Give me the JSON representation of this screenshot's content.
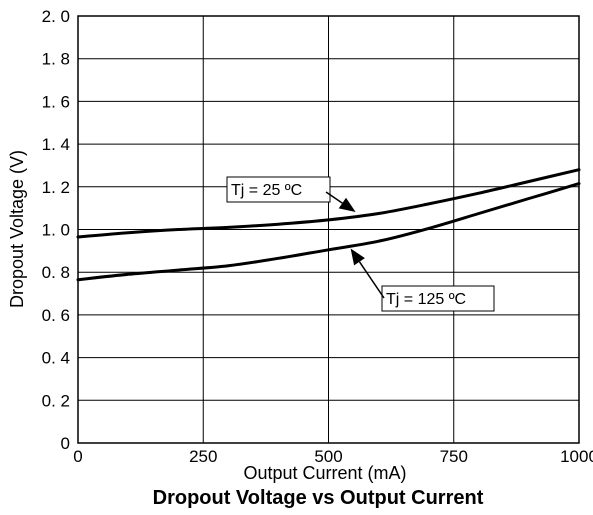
{
  "chart_data": {
    "type": "line",
    "title": "Dropout Voltage vs Output Current",
    "xlabel": "Output Current (mA)",
    "ylabel": "Dropout Voltage (V)",
    "xlim": [
      0,
      1000
    ],
    "ylim": [
      0,
      2.0
    ],
    "x_ticks": [
      0,
      250,
      500,
      750,
      1000
    ],
    "x_tick_labels": [
      "0",
      "250",
      "500",
      "750",
      "1000"
    ],
    "y_ticks": [
      0,
      0.2,
      0.4,
      0.6,
      0.8,
      1.0,
      1.2,
      1.4,
      1.6,
      1.8,
      2.0
    ],
    "y_tick_labels": [
      "0",
      "0. 2",
      "0. 4",
      "0. 6",
      "0. 8",
      "1. 0",
      "1. 2",
      "1. 4",
      "1. 6",
      "1. 8",
      "2. 0"
    ],
    "grid": true,
    "series": [
      {
        "name": "Tj = 25 ºC",
        "x": [
          0,
          100,
          200,
          300,
          400,
          500,
          600,
          700,
          800,
          900,
          1000
        ],
        "y": [
          0.965,
          0.985,
          1.0,
          1.01,
          1.025,
          1.045,
          1.075,
          1.12,
          1.17,
          1.225,
          1.28
        ]
      },
      {
        "name": "Tj = 125 ºC",
        "x": [
          0,
          100,
          200,
          300,
          400,
          500,
          600,
          700,
          800,
          900,
          1000
        ],
        "y": [
          0.765,
          0.79,
          0.81,
          0.83,
          0.865,
          0.905,
          0.945,
          1.005,
          1.075,
          1.145,
          1.215
        ]
      }
    ],
    "annotations": [
      {
        "text": "Tj = 25 ºC",
        "series": 0,
        "target_x": 560
      },
      {
        "text": "Tj = 125 ºC",
        "series": 1,
        "target_x": 550
      }
    ]
  }
}
